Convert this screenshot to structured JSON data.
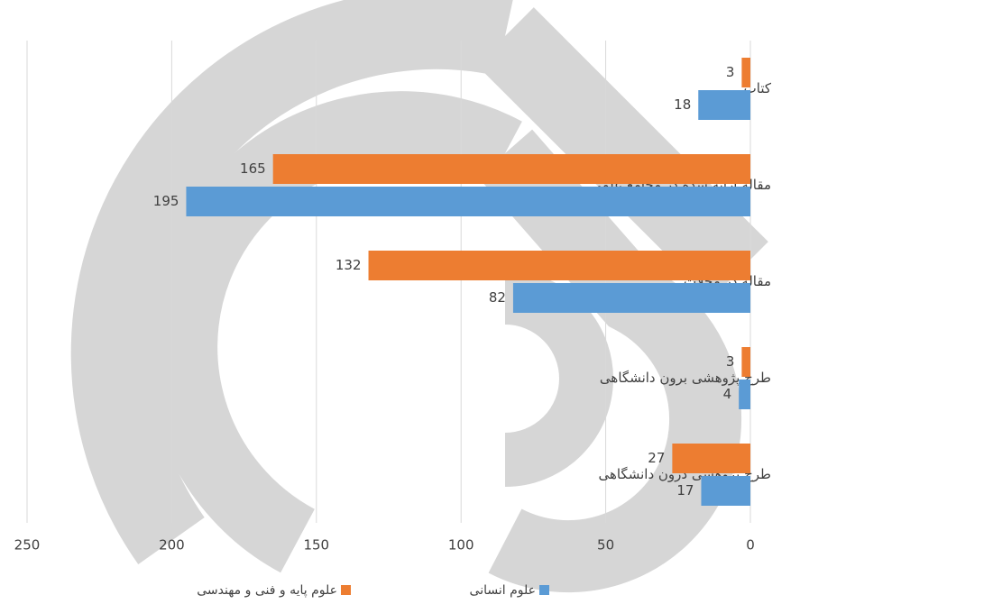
{
  "chart_data": {
    "type": "bar",
    "orientation": "horizontal",
    "x_reversed": true,
    "categories": [
      "کتاب",
      "مقاله ارائه شده در مجامع علمی",
      "مقاله در مجلات",
      "طرح پژوهشی برون دانشگاهی",
      "طرح پژوهشی درون دانشگاهی"
    ],
    "series": [
      {
        "name": "علوم پایه و فنی و مهندسی",
        "color": "#ed7d31",
        "values": [
          3,
          165,
          132,
          3,
          27
        ]
      },
      {
        "name": "علوم انسانی",
        "color": "#5b9bd5",
        "values": [
          18,
          195,
          82,
          4,
          17
        ]
      }
    ],
    "xlim": [
      0,
      250
    ],
    "xticks": [
      0,
      50,
      100,
      150,
      200,
      250
    ],
    "grid": true,
    "legend": "bottom"
  }
}
